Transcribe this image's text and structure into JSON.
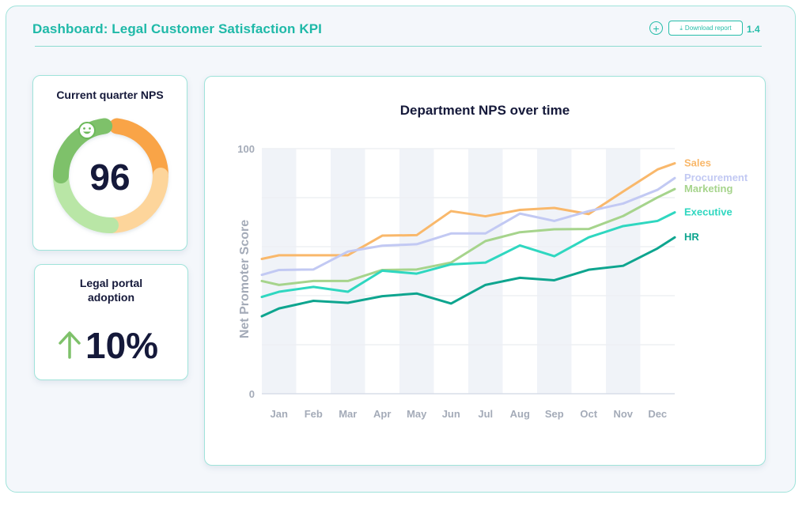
{
  "header": {
    "title": "Dashboard: Legal Customer Satisfaction KPI",
    "download_label": "Download report",
    "version": "1.4"
  },
  "nps_card": {
    "title": "Current quarter NPS",
    "value": "96",
    "gauge_fraction": 0.96
  },
  "adoption_card": {
    "title": "Legal portal adoption",
    "value": "10%",
    "trend": "up"
  },
  "colors": {
    "Sales": "#f9b86b",
    "Procurement": "#c2c9f3",
    "Marketing": "#a6d48c",
    "Executive": "#2fd7c0",
    "HR": "#0ea58f",
    "gauge_green_dark": "#7ec16a",
    "gauge_green_light": "#b9e6a6",
    "gauge_orange_dark": "#f9a447",
    "gauge_orange_light": "#fdd59b"
  },
  "chart_data": {
    "type": "line",
    "title": "Department NPS over time",
    "xlabel": "",
    "ylabel": "Net Promoter Score",
    "ylim": [
      0,
      100
    ],
    "yticks": [
      "0",
      "100"
    ],
    "grid": "horizontal lines with alternating shaded month columns",
    "legend": "right, at line ends",
    "categories": [
      "Jan",
      "Feb",
      "Mar",
      "Apr",
      "May",
      "Jun",
      "Jul",
      "Aug",
      "Sep",
      "Oct",
      "Nov",
      "Dec"
    ],
    "series": [
      {
        "name": "Sales",
        "x": [
          "Jan",
          "Jan",
          "Feb",
          "Mar",
          "Apr",
          "May",
          "Jun",
          "Jul",
          "Aug",
          "Sep",
          "Oct",
          "Nov",
          "Dec",
          "Dec"
        ],
        "values": [
          55,
          56.5,
          56.5,
          56.5,
          64.5,
          64.7,
          74.5,
          72.4,
          75,
          75.8,
          73.3,
          82.5,
          91.5,
          94
        ]
      },
      {
        "name": "Procurement",
        "x": [
          "Jan",
          "Jan",
          "Feb",
          "Mar",
          "Apr",
          "May",
          "Jun",
          "Jul",
          "Aug",
          "Sep",
          "Oct",
          "Nov",
          "Dec",
          "Dec"
        ],
        "values": [
          48.5,
          50.5,
          50.7,
          58,
          60.4,
          61,
          65.4,
          65.4,
          73.5,
          70.5,
          74.5,
          77.6,
          83.2,
          88
        ]
      },
      {
        "name": "Marketing",
        "x": [
          "Jan",
          "Jan",
          "Feb",
          "Mar",
          "Apr",
          "May",
          "Jun",
          "Jul",
          "Aug",
          "Sep",
          "Oct",
          "Nov",
          "Dec",
          "Dec"
        ],
        "values": [
          46,
          44.4,
          46,
          46,
          50.5,
          50.7,
          53.5,
          62.3,
          65.9,
          67.1,
          67.2,
          72.5,
          80.1,
          83.5
        ]
      },
      {
        "name": "Executive",
        "x": [
          "Jan",
          "Jan",
          "Feb",
          "Mar",
          "Apr",
          "May",
          "Jun",
          "Jul",
          "Aug",
          "Sep",
          "Oct",
          "Nov",
          "Dec",
          "Dec"
        ],
        "values": [
          39.5,
          41.6,
          43.6,
          41.6,
          50.2,
          49,
          52.8,
          53.5,
          60.5,
          56.1,
          63.8,
          68.4,
          70.5,
          74
        ]
      },
      {
        "name": "HR",
        "x": [
          "Jan",
          "Jan",
          "Feb",
          "Mar",
          "Apr",
          "May",
          "Jun",
          "Jul",
          "Aug",
          "Sep",
          "Oct",
          "Nov",
          "Dec",
          "Dec"
        ],
        "values": [
          31.6,
          34.8,
          37.9,
          37.1,
          39.8,
          40.9,
          36.8,
          44.4,
          47.3,
          46.3,
          50.6,
          52.2,
          59.3,
          63.8
        ]
      }
    ]
  }
}
